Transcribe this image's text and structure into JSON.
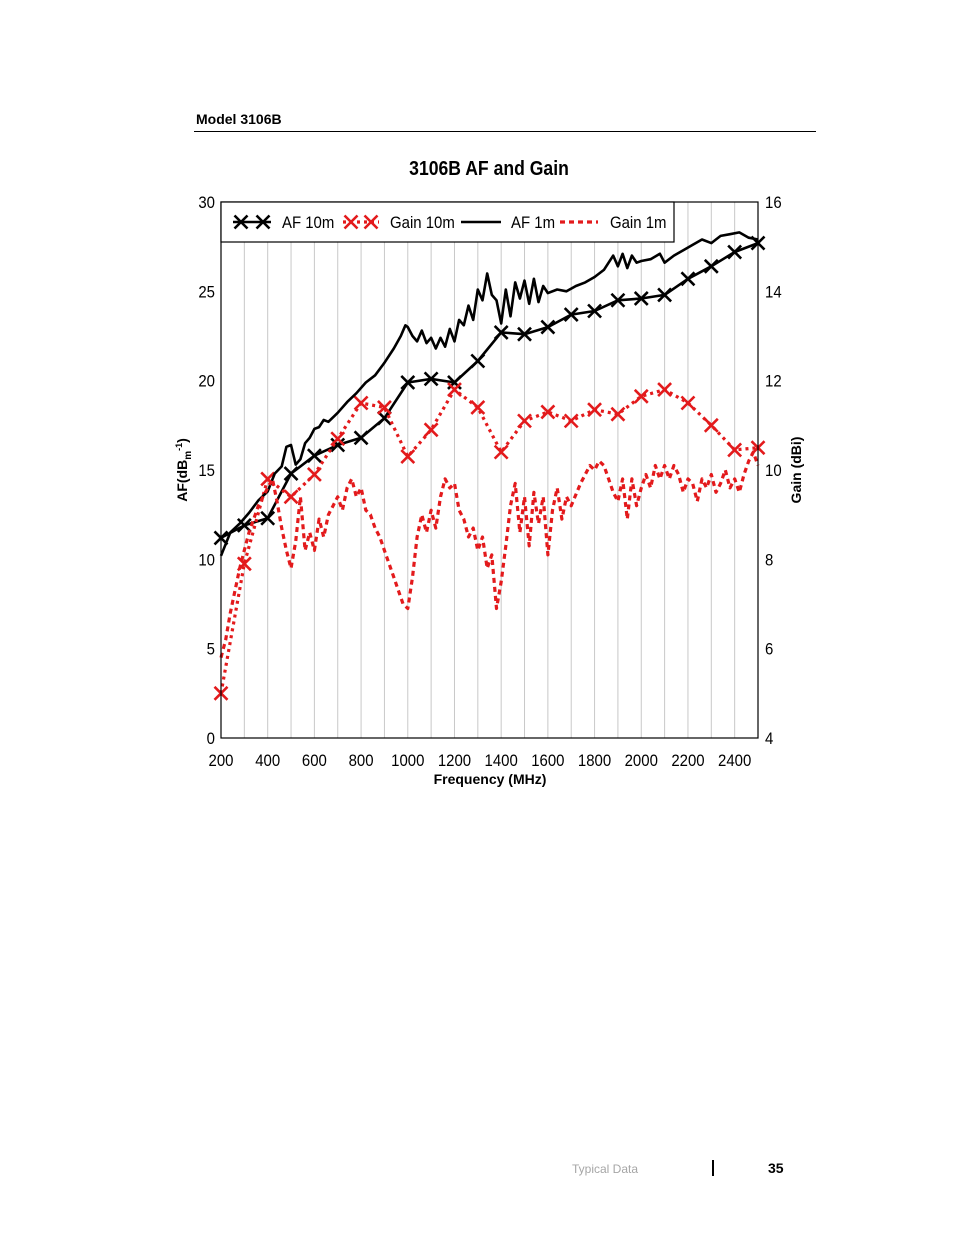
{
  "page": {
    "header": "Model 3106B",
    "footer_section": "Typical Data",
    "page_number": "35"
  },
  "chart_data": {
    "type": "line",
    "title": "3106B AF and Gain",
    "xlabel": "Frequency (MHz)",
    "ylabel_left_prefix": "AF(dB",
    "ylabel_left_sub": "m",
    "ylabel_left_sup": "-1",
    "ylabel_left_suffix": ")",
    "ylabel_right": "Gain (dBi)",
    "xlim": [
      200,
      2500
    ],
    "ylim_left": [
      0,
      30
    ],
    "ylim_right": [
      4,
      16
    ],
    "x_ticks": [
      200,
      400,
      600,
      800,
      1000,
      1200,
      1400,
      1600,
      1800,
      2000,
      2200,
      2400
    ],
    "y_left_ticks": [
      0,
      5,
      10,
      15,
      20,
      25,
      30
    ],
    "y_right_ticks": [
      4,
      6,
      8,
      10,
      12,
      14,
      16
    ],
    "grid": true,
    "legend_position": "top-left",
    "colors": {
      "black": "#000000",
      "red": "#e31a1c",
      "grid": "#c8c8c8"
    },
    "series": [
      {
        "name": "AF 10m",
        "axis": "left",
        "color": "#000000",
        "style": "solid-x",
        "x": [
          200,
          300,
          400,
          500,
          600,
          700,
          800,
          900,
          1000,
          1100,
          1200,
          1300,
          1400,
          1500,
          1600,
          1700,
          1800,
          1900,
          2000,
          2100,
          2200,
          2300,
          2400,
          2500
        ],
        "y": [
          11.2,
          11.9,
          12.3,
          14.8,
          15.8,
          16.4,
          16.8,
          17.9,
          19.9,
          20.1,
          19.9,
          21.1,
          22.7,
          22.6,
          23,
          23.7,
          23.9,
          24.5,
          24.6,
          24.8,
          25.7,
          26.4,
          27.2,
          27.7
        ]
      },
      {
        "name": "Gain 10m",
        "axis": "right",
        "color": "#e31a1c",
        "style": "dotted-x",
        "x": [
          200,
          300,
          400,
          500,
          600,
          700,
          800,
          900,
          1000,
          1100,
          1200,
          1300,
          1400,
          1500,
          1600,
          1700,
          1800,
          1900,
          2000,
          2100,
          2200,
          2300,
          2400,
          2500
        ],
        "y": [
          5,
          7.9,
          9.8,
          9.4,
          9.9,
          10.7,
          11.5,
          11.4,
          10.3,
          10.9,
          11.8,
          11.4,
          10.4,
          11.1,
          11.3,
          11.1,
          11.35,
          11.25,
          11.65,
          11.8,
          11.5,
          11,
          10.45,
          10.5
        ]
      },
      {
        "name": "AF 1m",
        "axis": "left",
        "color": "#000000",
        "style": "solid",
        "x": [
          200,
          240,
          280,
          320,
          360,
          400,
          430,
          460,
          480,
          500,
          520,
          540,
          560,
          580,
          600,
          620,
          640,
          660,
          700,
          740,
          780,
          820,
          860,
          900,
          940,
          970,
          990,
          1000,
          1020,
          1040,
          1060,
          1080,
          1100,
          1120,
          1140,
          1160,
          1180,
          1200,
          1220,
          1240,
          1260,
          1280,
          1300,
          1320,
          1340,
          1360,
          1380,
          1400,
          1420,
          1440,
          1460,
          1480,
          1500,
          1520,
          1540,
          1560,
          1580,
          1600,
          1640,
          1680,
          1720,
          1760,
          1800,
          1840,
          1880,
          1900,
          1920,
          1940,
          1960,
          1980,
          2000,
          2040,
          2080,
          2100,
          2140,
          2180,
          2220,
          2260,
          2300,
          2340,
          2380,
          2420,
          2460,
          2500
        ],
        "y": [
          10.2,
          11.5,
          12,
          12.6,
          13.3,
          13.8,
          14.8,
          15.2,
          16.3,
          16.4,
          15.3,
          15.6,
          16.5,
          16.8,
          17.3,
          17.4,
          17.8,
          17.7,
          18.2,
          18.8,
          19.3,
          19.9,
          20.3,
          21,
          21.8,
          22.5,
          23.1,
          23,
          22.5,
          22.2,
          22.8,
          22.1,
          22.4,
          21.8,
          22.4,
          21.9,
          22.9,
          22.2,
          23.4,
          23.1,
          24.2,
          23.4,
          25.1,
          24.5,
          26,
          24.8,
          24.5,
          23.2,
          25.1,
          23.6,
          25.5,
          24.6,
          25.6,
          24.3,
          25.7,
          24.4,
          25.3,
          24.9,
          25.1,
          25,
          25.3,
          25.5,
          25.8,
          26.2,
          27,
          26.4,
          27.1,
          26.3,
          27,
          26.6,
          26.7,
          26.8,
          27.1,
          26.6,
          27,
          27.3,
          27.6,
          27.9,
          27.7,
          28.1,
          28.2,
          28.3,
          28,
          27.9
        ]
      },
      {
        "name": "Gain 1m",
        "axis": "right",
        "color": "#e31a1c",
        "style": "dashed",
        "x": [
          200,
          220,
          240,
          260,
          280,
          300,
          320,
          340,
          360,
          380,
          400,
          420,
          440,
          460,
          480,
          500,
          520,
          540,
          560,
          580,
          600,
          620,
          640,
          660,
          680,
          700,
          720,
          740,
          760,
          780,
          800,
          820,
          840,
          860,
          880,
          900,
          920,
          940,
          960,
          980,
          1000,
          1020,
          1040,
          1060,
          1080,
          1100,
          1120,
          1140,
          1160,
          1180,
          1200,
          1220,
          1240,
          1260,
          1280,
          1300,
          1320,
          1340,
          1360,
          1380,
          1400,
          1420,
          1440,
          1460,
          1480,
          1500,
          1520,
          1540,
          1560,
          1580,
          1600,
          1620,
          1640,
          1660,
          1680,
          1700,
          1740,
          1780,
          1800,
          1820,
          1840,
          1860,
          1880,
          1900,
          1920,
          1940,
          1960,
          1980,
          2000,
          2020,
          2040,
          2060,
          2080,
          2100,
          2120,
          2140,
          2160,
          2180,
          2200,
          2220,
          2240,
          2260,
          2280,
          2300,
          2320,
          2340,
          2360,
          2380,
          2400,
          2420,
          2440,
          2460,
          2480,
          2500
        ],
        "y": [
          5.8,
          6.2,
          6.8,
          7.3,
          7.8,
          8.2,
          8.6,
          8.9,
          9.2,
          9.4,
          9.6,
          9.8,
          9.3,
          8.7,
          8.2,
          7.8,
          8.4,
          9.4,
          8.2,
          8.6,
          8.2,
          8.9,
          8.5,
          9,
          9.2,
          9.4,
          9.1,
          9.6,
          9.8,
          9.4,
          9.6,
          9.1,
          9,
          8.7,
          8.5,
          8.2,
          7.9,
          7.6,
          7.3,
          7,
          6.9,
          7.6,
          8.5,
          9,
          8.6,
          9.1,
          8.7,
          9.4,
          9.8,
          9.6,
          9.7,
          9.1,
          8.9,
          8.5,
          8.7,
          8.2,
          8.5,
          7.8,
          8.1,
          6.9,
          7.5,
          8.3,
          9.2,
          9.7,
          8.6,
          9.4,
          8.3,
          9.5,
          8.8,
          9.4,
          8.1,
          9.1,
          9.6,
          8.9,
          9.4,
          9.2,
          9.7,
          10.1,
          10,
          10.2,
          10.1,
          9.8,
          9.5,
          9.3,
          9.8,
          8.9,
          9.8,
          9.2,
          9.6,
          9.9,
          9.6,
          10.1,
          9.8,
          10.1,
          9.8,
          10.1,
          9.9,
          9.5,
          9.8,
          9.7,
          9.3,
          9.8,
          9.6,
          9.9,
          9.5,
          9.7,
          10,
          9.6,
          9.8,
          9.5,
          9.9,
          10.2,
          10.4,
          10.1
        ]
      }
    ]
  }
}
